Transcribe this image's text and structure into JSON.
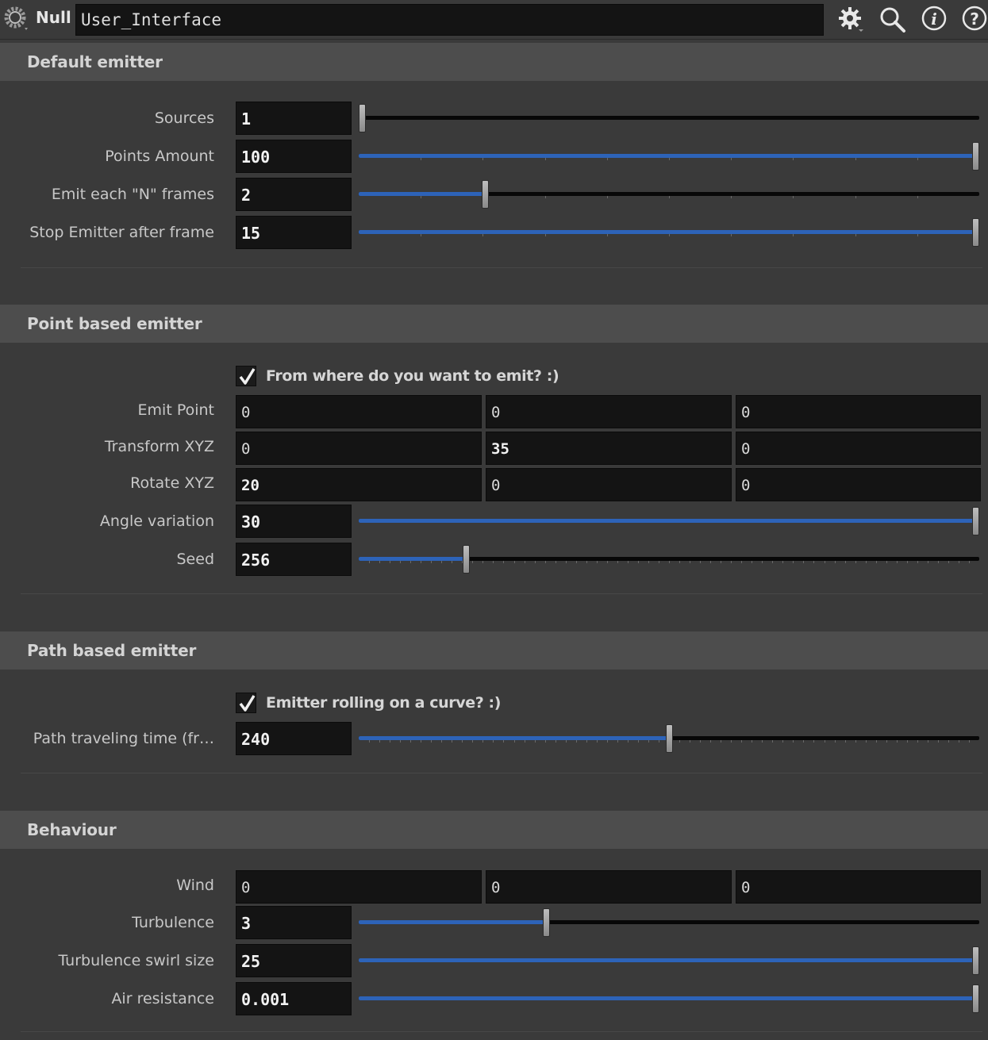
{
  "header": {
    "node_type": "Null",
    "node_name": "User_Interface",
    "icons": [
      "gear-icon",
      "search-icon",
      "info-icon",
      "help-icon"
    ]
  },
  "colors": {
    "slider_fill": "#2d63b8",
    "field_bg": "#141414",
    "section_bg": "#4d4d4d"
  },
  "sections": {
    "default_emitter": {
      "title": "Default emitter",
      "sources": {
        "label": "Sources",
        "value": "1",
        "slider": 0.0
      },
      "points_amount": {
        "label": "Points Amount",
        "value": "100",
        "slider": 1.0
      },
      "emit_each": {
        "label": "Emit each \"N\" frames",
        "value": "2",
        "slider": 0.2
      },
      "stop_emitter": {
        "label": "Stop Emitter after frame",
        "value": "15",
        "slider": 1.0
      }
    },
    "point_emitter": {
      "title": "Point based emitter",
      "toggle": {
        "label": "From where do you want to emit? :)",
        "checked": true
      },
      "emit_point": {
        "label": "Emit Point",
        "x": "0",
        "y": "0",
        "z": "0"
      },
      "transform": {
        "label": "Transform XYZ",
        "x": "0",
        "y": "35",
        "z": "0"
      },
      "rotate": {
        "label": "Rotate XYZ",
        "x": "20",
        "y": "0",
        "z": "0"
      },
      "angle_variation": {
        "label": "Angle variation",
        "value": "30",
        "slider": 1.0
      },
      "seed": {
        "label": "Seed",
        "value": "256",
        "slider": 0.17
      }
    },
    "path_emitter": {
      "title": "Path based emitter",
      "toggle": {
        "label": "Emitter rolling on a curve? :)",
        "checked": true
      },
      "travel_time": {
        "label": "Path traveling time (fr…",
        "value": "240",
        "slider": 0.5
      }
    },
    "behaviour": {
      "title": "Behaviour",
      "wind": {
        "label": "Wind",
        "x": "0",
        "y": "0",
        "z": "0"
      },
      "turbulence": {
        "label": "Turbulence",
        "value": "3",
        "slider": 0.3
      },
      "swirl_size": {
        "label": "Turbulence swirl size",
        "value": "25",
        "slider": 1.0
      },
      "air_resistance": {
        "label": "Air resistance",
        "value": "0.001",
        "slider": 1.0
      }
    }
  }
}
